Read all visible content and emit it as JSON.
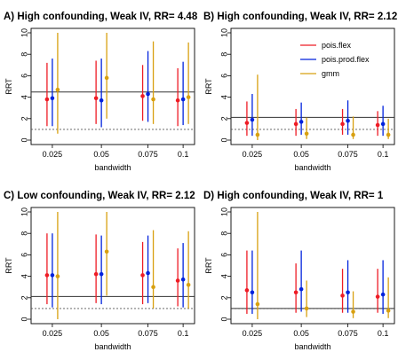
{
  "chart_data": [
    {
      "type": "scatter",
      "title": "A) High confounding, Weak IV, RR= 4.48",
      "xlabel": "bandwidth",
      "ylabel": "RRT",
      "ylim": [
        0,
        10
      ],
      "yticks": [
        0,
        2,
        4,
        6,
        8,
        10
      ],
      "categories": [
        "0.025",
        "0.05",
        "0.075",
        "0.1"
      ],
      "reference_lines": {
        "solid": 4.48,
        "dotted": 1
      },
      "series": [
        {
          "color": "#ee1c25",
          "points": [
            {
              "est": 3.8,
              "lo": 1.3,
              "hi": 7.2
            },
            {
              "est": 3.9,
              "lo": 1.5,
              "hi": 7.4
            },
            {
              "est": 4.1,
              "lo": 1.8,
              "hi": 7.0
            },
            {
              "est": 3.7,
              "lo": 1.3,
              "hi": 6.7
            }
          ]
        },
        {
          "color": "#0022dd",
          "points": [
            {
              "est": 3.9,
              "lo": 1.3,
              "hi": 7.6
            },
            {
              "est": 3.7,
              "lo": 1.2,
              "hi": 7.6
            },
            {
              "est": 4.3,
              "lo": 1.7,
              "hi": 8.3
            },
            {
              "est": 3.8,
              "lo": 1.4,
              "hi": 7.3
            }
          ]
        },
        {
          "color": "#d8a010",
          "points": [
            {
              "est": 4.7,
              "lo": 0.6,
              "hi": 10.0
            },
            {
              "est": 5.8,
              "lo": 2.0,
              "hi": 10.0
            },
            {
              "est": 3.8,
              "lo": 1.5,
              "hi": 9.2
            },
            {
              "est": 4.0,
              "lo": 1.5,
              "hi": 9.1
            }
          ]
        }
      ]
    },
    {
      "type": "scatter",
      "title": "B) High confounding, Weak IV, RR= 2.12",
      "xlabel": "bandwidth",
      "ylabel": "RRT",
      "ylim": [
        0,
        10
      ],
      "yticks": [
        0,
        2,
        4,
        6,
        8,
        10
      ],
      "categories": [
        "0.025",
        "0.05",
        "0.075",
        "0.1"
      ],
      "reference_lines": {
        "solid": 2.12,
        "dotted": 1
      },
      "legend": {
        "placement": "top-right",
        "entries": [
          "pois.flex",
          "pois.prod.flex",
          "gmm"
        ]
      },
      "series": [
        {
          "color": "#ee1c25",
          "points": [
            {
              "est": 1.6,
              "lo": 0.4,
              "hi": 3.6
            },
            {
              "est": 1.5,
              "lo": 0.4,
              "hi": 2.9
            },
            {
              "est": 1.5,
              "lo": 0.5,
              "hi": 2.9
            },
            {
              "est": 1.4,
              "lo": 0.4,
              "hi": 2.7
            }
          ]
        },
        {
          "color": "#0022dd",
          "points": [
            {
              "est": 1.9,
              "lo": 0.4,
              "hi": 4.3
            },
            {
              "est": 1.7,
              "lo": 0.5,
              "hi": 3.5
            },
            {
              "est": 1.8,
              "lo": 0.5,
              "hi": 3.7
            },
            {
              "est": 1.5,
              "lo": 0.4,
              "hi": 3.2
            }
          ]
        },
        {
          "color": "#d8a010",
          "points": [
            {
              "est": 0.5,
              "lo": 0.0,
              "hi": 6.1
            },
            {
              "est": 0.6,
              "lo": 0.1,
              "hi": 2.1
            },
            {
              "est": 0.5,
              "lo": 0.1,
              "hi": 2.2
            },
            {
              "est": 0.5,
              "lo": 0.1,
              "hi": 2.0
            }
          ]
        }
      ]
    },
    {
      "type": "scatter",
      "title": "C) Low confounding, Weak IV, RR= 2.12",
      "xlabel": "bandwidth",
      "ylabel": "RRT",
      "ylim": [
        0,
        10
      ],
      "yticks": [
        0,
        2,
        4,
        6,
        8,
        10
      ],
      "categories": [
        "0.025",
        "0.05",
        "0.075",
        "0.1"
      ],
      "reference_lines": {
        "solid": 2.12,
        "dotted": 1
      },
      "series": [
        {
          "color": "#ee1c25",
          "points": [
            {
              "est": 4.1,
              "lo": 1.4,
              "hi": 8.0
            },
            {
              "est": 4.2,
              "lo": 1.5,
              "hi": 7.9
            },
            {
              "est": 4.1,
              "lo": 1.4,
              "hi": 7.2
            },
            {
              "est": 3.6,
              "lo": 1.2,
              "hi": 6.6
            }
          ]
        },
        {
          "color": "#0022dd",
          "points": [
            {
              "est": 4.1,
              "lo": 1.1,
              "hi": 8.0
            },
            {
              "est": 4.2,
              "lo": 1.4,
              "hi": 7.8
            },
            {
              "est": 4.3,
              "lo": 1.5,
              "hi": 7.8
            },
            {
              "est": 3.7,
              "lo": 1.1,
              "hi": 7.1
            }
          ]
        },
        {
          "color": "#d8a010",
          "points": [
            {
              "est": 4.0,
              "lo": 0.0,
              "hi": 10.0
            },
            {
              "est": 6.3,
              "lo": 2.2,
              "hi": 10.0
            },
            {
              "est": 3.0,
              "lo": 1.0,
              "hi": 8.3
            },
            {
              "est": 3.2,
              "lo": 1.0,
              "hi": 8.2
            }
          ]
        }
      ]
    },
    {
      "type": "scatter",
      "title": "D) High confounding, Weak IV, RR= 1",
      "xlabel": "bandwidth",
      "ylabel": "RRT",
      "ylim": [
        0,
        10
      ],
      "yticks": [
        0,
        2,
        4,
        6,
        8,
        10
      ],
      "categories": [
        "0.025",
        "0.05",
        "0.075",
        "0.1"
      ],
      "reference_lines": {
        "solid": 1,
        "dotted": 1
      },
      "series": [
        {
          "color": "#ee1c25",
          "points": [
            {
              "est": 2.7,
              "lo": 0.5,
              "hi": 6.4
            },
            {
              "est": 2.5,
              "lo": 0.6,
              "hi": 5.2
            },
            {
              "est": 2.2,
              "lo": 0.6,
              "hi": 4.7
            },
            {
              "est": 2.1,
              "lo": 0.6,
              "hi": 4.7
            }
          ]
        },
        {
          "color": "#0022dd",
          "points": [
            {
              "est": 2.5,
              "lo": 0.5,
              "hi": 6.4
            },
            {
              "est": 2.8,
              "lo": 0.7,
              "hi": 6.4
            },
            {
              "est": 2.5,
              "lo": 0.6,
              "hi": 5.5
            },
            {
              "est": 2.3,
              "lo": 0.5,
              "hi": 5.5
            }
          ]
        },
        {
          "color": "#d8a010",
          "points": [
            {
              "est": 1.4,
              "lo": 0.0,
              "hi": 10.0
            },
            {
              "est": 1.0,
              "lo": 0.2,
              "hi": 3.6
            },
            {
              "est": 0.7,
              "lo": 0.1,
              "hi": 2.6
            },
            {
              "est": 0.8,
              "lo": 0.1,
              "hi": 3.9
            }
          ]
        }
      ]
    }
  ]
}
